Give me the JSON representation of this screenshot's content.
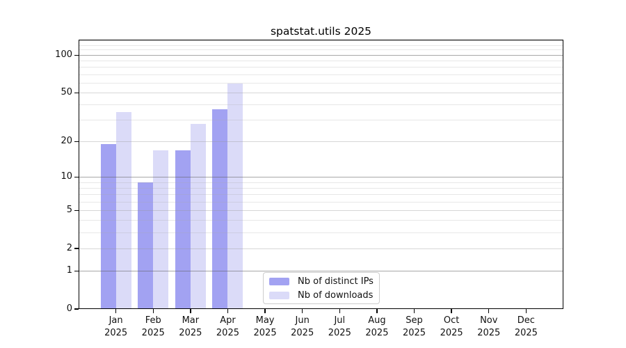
{
  "figure": {
    "title": "spatstat.utils 2025"
  },
  "chart_data": {
    "type": "bar",
    "title": "spatstat.utils 2025",
    "categories": [
      "Jan 2025",
      "Feb 2025",
      "Mar 2025",
      "Apr 2025",
      "May 2025",
      "Jun 2025",
      "Jul 2025",
      "Aug 2025",
      "Sep 2025",
      "Oct 2025",
      "Nov 2025",
      "Dec 2025"
    ],
    "series": [
      {
        "name": "Nb of distinct IPs",
        "color": "#a2a2f2",
        "values": [
          19,
          9,
          17,
          37,
          0,
          0,
          0,
          0,
          0,
          0,
          0,
          0
        ]
      },
      {
        "name": "Nb of downloads",
        "color": "#dbdbf8",
        "values": [
          35,
          17,
          28,
          59,
          0,
          0,
          0,
          0,
          0,
          0,
          0,
          0
        ]
      }
    ],
    "xlabel": "",
    "ylabel": "",
    "y_scale": "log1p",
    "y_ticks": [
      100,
      50,
      20,
      10,
      5,
      2,
      1,
      0
    ],
    "ylim": [
      0,
      133
    ],
    "grid": "horizontal major and minor log gridlines",
    "legend_position": "lower center"
  }
}
